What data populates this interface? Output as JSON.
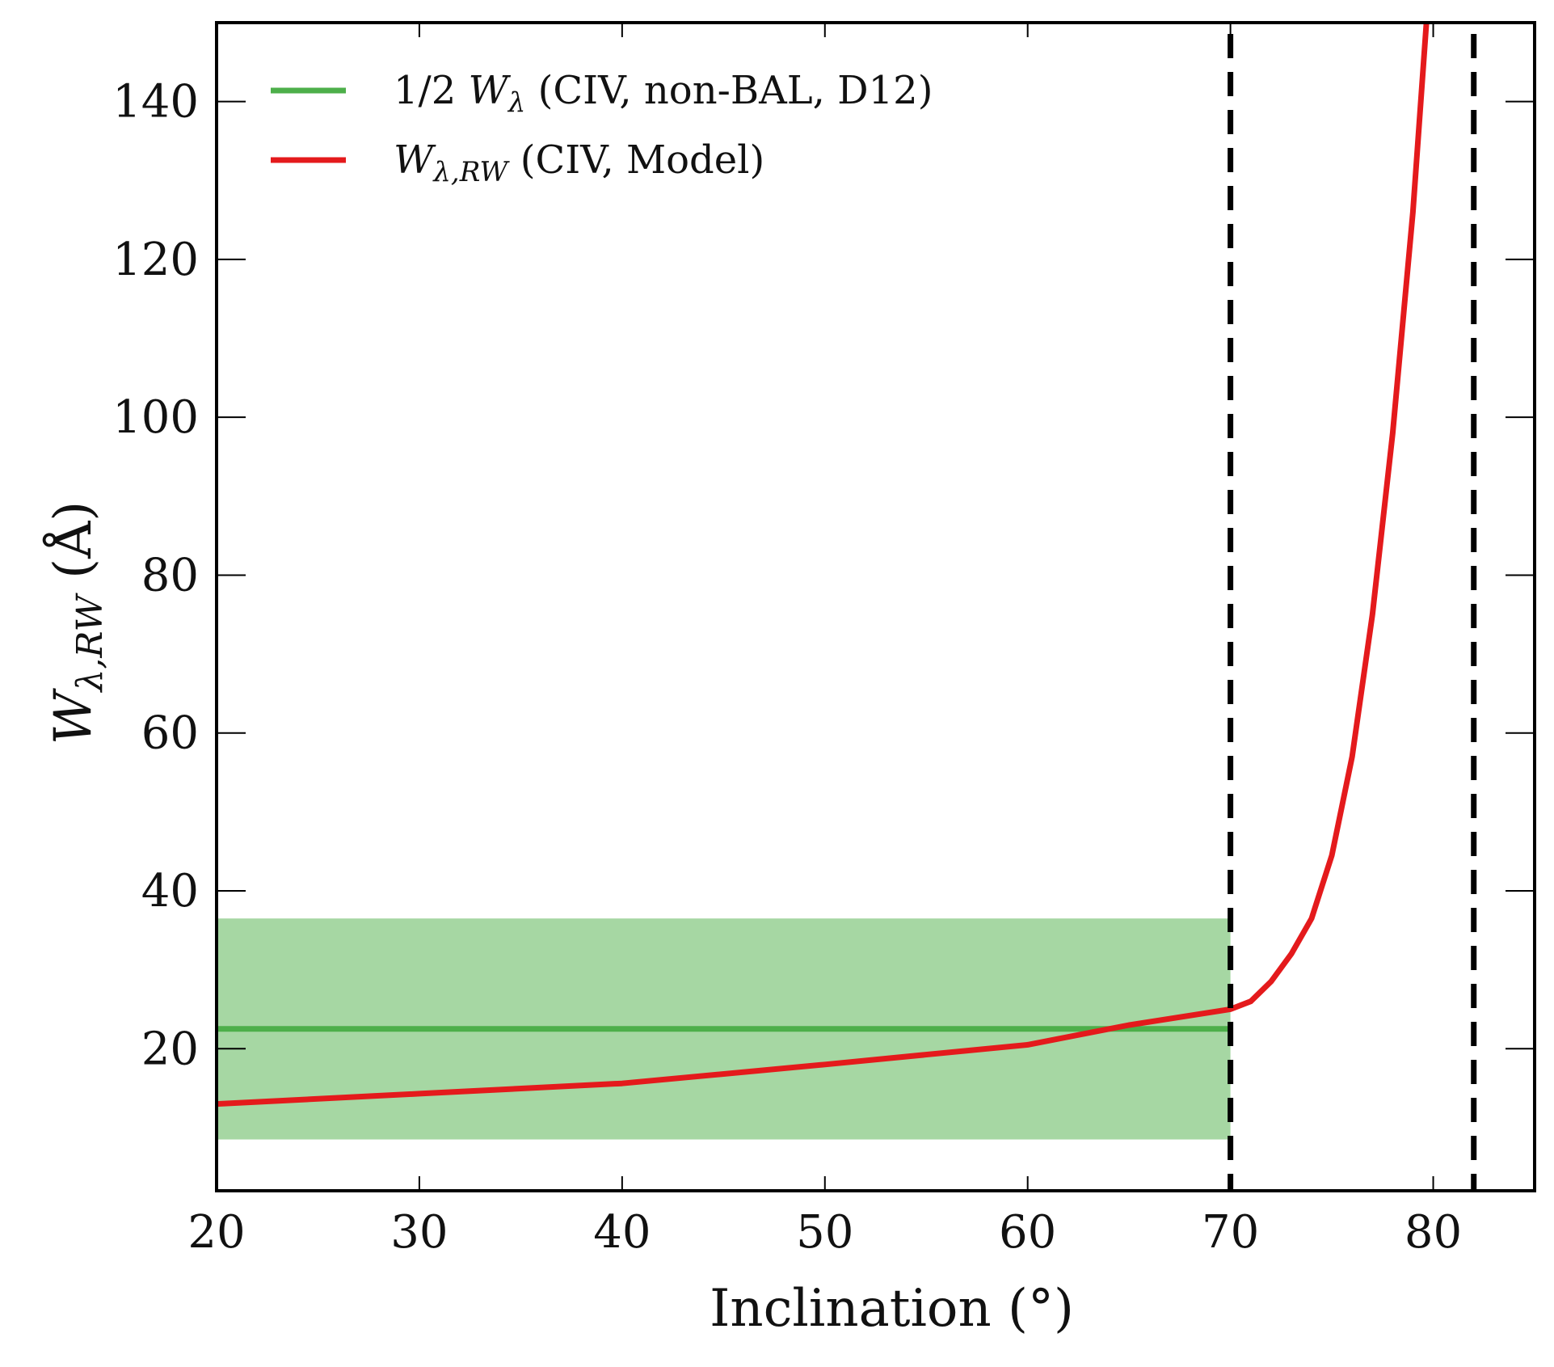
{
  "chart_data": {
    "type": "line",
    "xlabel": "Inclination (°)",
    "ylabel": "W λ,RW (Å)",
    "ylabel_parts": {
      "main": "W",
      "sub": "λ,RW",
      "unit": " (Å)"
    },
    "xlim": [
      20,
      85
    ],
    "ylim": [
      2,
      150
    ],
    "x_ticks": [
      20,
      30,
      40,
      50,
      60,
      70,
      80
    ],
    "y_ticks": [
      20,
      40,
      60,
      80,
      100,
      120,
      140
    ],
    "grid": false,
    "legend_position": "top-left",
    "series": [
      {
        "name": "1/2 W λ (CIV, non-BAL, D12)",
        "legend_parts": {
          "pre": "1/2 ",
          "w": "W",
          "sub": "λ",
          "post": " (CIV, non-BAL, D12)"
        },
        "color": "#4daf4a",
        "x": [
          20,
          70
        ],
        "y": [
          22.5,
          22.5
        ],
        "band": {
          "x": [
            20,
            70
          ],
          "y_low": 8.5,
          "y_high": 36.5,
          "color": "#a6d7a3"
        }
      },
      {
        "name": "W λ,RW (CIV, Model)",
        "legend_parts": {
          "pre": "",
          "w": "W",
          "sub": "λ,RW",
          "post": " (CIV, Model)"
        },
        "color": "#e41a1c",
        "x": [
          20,
          30,
          40,
          50,
          60,
          65,
          70,
          71,
          72,
          73,
          74,
          75,
          76,
          77,
          78,
          79,
          80
        ],
        "y": [
          13,
          14.3,
          15.6,
          18,
          20.5,
          23,
          25,
          26,
          28.5,
          32,
          36.5,
          44.5,
          57,
          75,
          98,
          126,
          162
        ]
      }
    ],
    "vertical_lines": [
      {
        "x": 70,
        "style": "dashed",
        "color": "#000000"
      },
      {
        "x": 82,
        "style": "dashed",
        "color": "#000000"
      }
    ]
  }
}
